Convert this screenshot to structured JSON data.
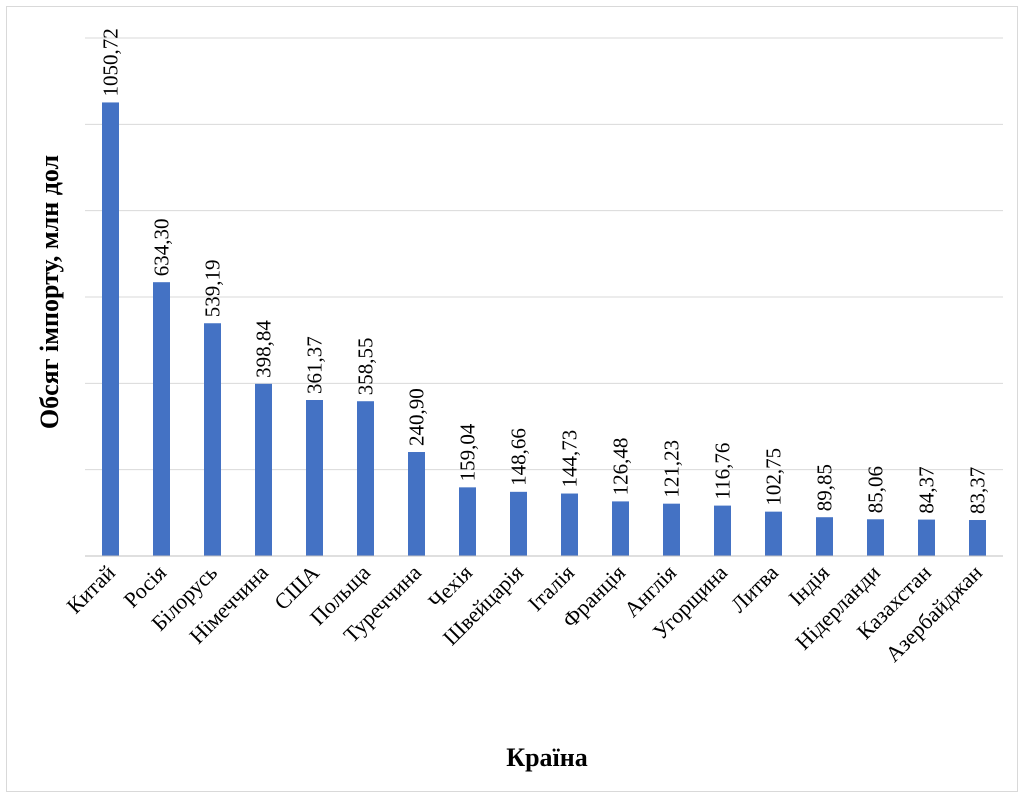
{
  "chart_data": {
    "type": "bar",
    "title": "",
    "xlabel": "Країна",
    "ylabel": "Обсяг імпорту, млн дол",
    "ylim": [
      0,
      1200
    ],
    "grid": true,
    "categories": [
      "Китай",
      "Росія",
      "Білорусь",
      "Німеччина",
      "США",
      "Польща",
      "Туреччина",
      "Чехія",
      "Швейцарія",
      "Італія",
      "Франція",
      "Англія",
      "Угорщина",
      "Литва",
      "Індія",
      "Нідерланди",
      "Казахстан",
      "Азербайджан"
    ],
    "values": [
      1050.72,
      634.3,
      539.19,
      398.84,
      361.37,
      358.55,
      240.9,
      159.04,
      148.66,
      144.73,
      126.48,
      121.23,
      116.76,
      102.75,
      89.85,
      85.06,
      84.37,
      83.37
    ],
    "value_labels": [
      "1050,72",
      "634,30",
      "539,19",
      "398,84",
      "361,37",
      "358,55",
      "240,90",
      "159,04",
      "148,66",
      "144,73",
      "126,48",
      "121,23",
      "116,76",
      "102,75",
      "89,85",
      "85,06",
      "84,37",
      "83,37"
    ],
    "bar_color": "#4472c4"
  }
}
